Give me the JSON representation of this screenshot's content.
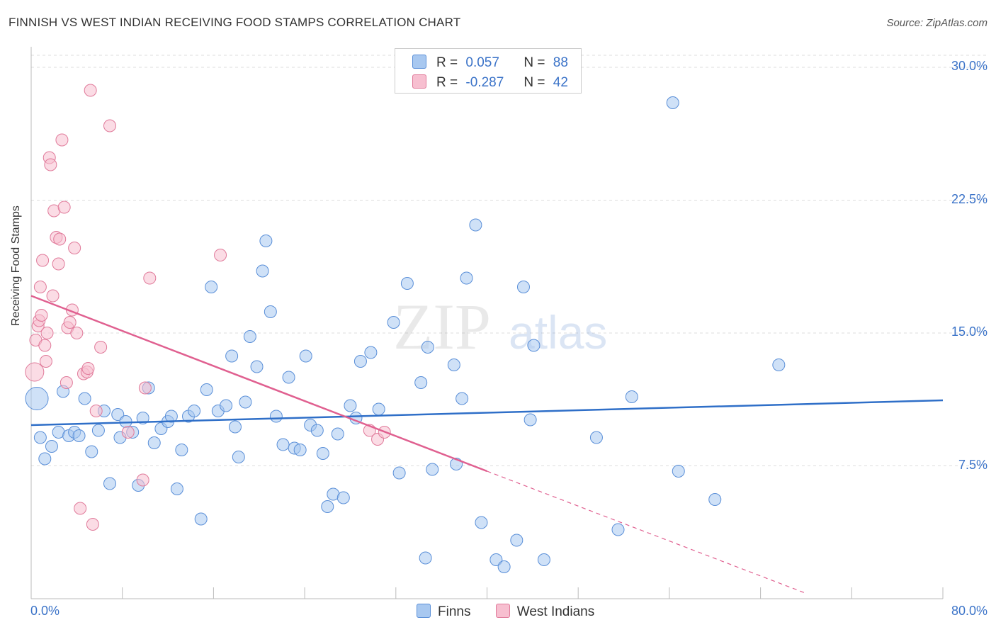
{
  "title": "FINNISH VS WEST INDIAN RECEIVING FOOD STAMPS CORRELATION CHART",
  "source": "Source: ZipAtlas.com",
  "watermark": {
    "zip": "ZIP",
    "atlas": "atlas"
  },
  "legend": {
    "items": [
      {
        "r_label": "R =",
        "r_value": "0.057",
        "n_label": "N =",
        "n_value": "88",
        "color": "#a8c8f0",
        "stroke": "#5a8fd8"
      },
      {
        "r_label": "R =",
        "r_value": "-0.287",
        "n_label": "N =",
        "n_value": "42",
        "color": "#f7bfd0",
        "stroke": "#e07a9a"
      }
    ]
  },
  "bottom_legend": [
    "Finns",
    "West Indians"
  ],
  "colors": {
    "finns_fill": "#a8c8f0",
    "finns_stroke": "#5a8fd8",
    "finns_line": "#2f6fc8",
    "wi_fill": "#f7bfd0",
    "wi_stroke": "#e07a9a",
    "wi_line": "#e06090",
    "tick_text": "#3b73c8",
    "grid": "#dddddd"
  },
  "chart_data": {
    "type": "scatter",
    "title": "FINNISH VS WEST INDIAN RECEIVING FOOD STAMPS CORRELATION CHART",
    "xlabel": "",
    "ylabel": "Receiving Food Stamps",
    "xlim": [
      0,
      80
    ],
    "ylim": [
      0,
      31
    ],
    "x_tick_labels": [
      "0.0%",
      "80.0%"
    ],
    "y_ticks": [
      7.5,
      15.0,
      22.5,
      30.0
    ],
    "y_tick_labels": [
      "7.5%",
      "15.0%",
      "22.5%",
      "30.0%"
    ],
    "series": [
      {
        "name": "Finns",
        "r": 0.057,
        "n": 88,
        "trend": {
          "x": [
            0,
            80
          ],
          "y": [
            9.8,
            11.2
          ]
        },
        "points": [
          [
            0.5,
            11.3
          ],
          [
            0.8,
            9.1
          ],
          [
            1.2,
            7.9
          ],
          [
            1.8,
            8.6
          ],
          [
            2.4,
            9.4
          ],
          [
            2.8,
            11.7
          ],
          [
            3.3,
            9.2
          ],
          [
            3.8,
            9.4
          ],
          [
            4.2,
            9.2
          ],
          [
            4.7,
            11.3
          ],
          [
            5.3,
            8.3
          ],
          [
            5.9,
            9.5
          ],
          [
            6.4,
            10.6
          ],
          [
            6.9,
            6.5
          ],
          [
            7.6,
            10.4
          ],
          [
            7.8,
            9.1
          ],
          [
            8.3,
            10.0
          ],
          [
            8.9,
            9.4
          ],
          [
            9.4,
            6.4
          ],
          [
            9.8,
            10.2
          ],
          [
            10.3,
            11.9
          ],
          [
            10.8,
            8.8
          ],
          [
            11.4,
            9.6
          ],
          [
            12.0,
            10.0
          ],
          [
            12.3,
            10.3
          ],
          [
            12.8,
            6.2
          ],
          [
            13.2,
            8.4
          ],
          [
            13.8,
            10.3
          ],
          [
            14.3,
            10.6
          ],
          [
            14.9,
            4.5
          ],
          [
            15.4,
            11.8
          ],
          [
            15.8,
            17.6
          ],
          [
            16.4,
            10.6
          ],
          [
            17.1,
            10.9
          ],
          [
            17.6,
            13.7
          ],
          [
            17.9,
            9.7
          ],
          [
            18.2,
            8.0
          ],
          [
            18.8,
            11.1
          ],
          [
            19.2,
            14.8
          ],
          [
            19.8,
            13.1
          ],
          [
            20.3,
            18.5
          ],
          [
            20.6,
            20.2
          ],
          [
            21.0,
            16.2
          ],
          [
            21.5,
            10.3
          ],
          [
            22.1,
            8.7
          ],
          [
            22.6,
            12.5
          ],
          [
            23.1,
            8.5
          ],
          [
            23.6,
            8.4
          ],
          [
            24.1,
            13.7
          ],
          [
            24.5,
            9.8
          ],
          [
            25.1,
            9.5
          ],
          [
            25.6,
            8.2
          ],
          [
            26.0,
            5.2
          ],
          [
            26.5,
            5.9
          ],
          [
            26.9,
            9.3
          ],
          [
            27.4,
            5.7
          ],
          [
            28.0,
            10.9
          ],
          [
            28.5,
            10.2
          ],
          [
            28.9,
            13.4
          ],
          [
            29.8,
            13.9
          ],
          [
            30.5,
            10.7
          ],
          [
            31.8,
            15.6
          ],
          [
            32.3,
            7.1
          ],
          [
            33.0,
            17.8
          ],
          [
            34.2,
            12.2
          ],
          [
            34.6,
            2.3
          ],
          [
            34.8,
            14.2
          ],
          [
            35.2,
            7.3
          ],
          [
            37.1,
            13.2
          ],
          [
            37.3,
            7.6
          ],
          [
            37.8,
            11.3
          ],
          [
            38.2,
            18.1
          ],
          [
            39.0,
            21.1
          ],
          [
            39.5,
            4.3
          ],
          [
            40.8,
            2.2
          ],
          [
            41.5,
            1.8
          ],
          [
            42.6,
            3.3
          ],
          [
            43.2,
            17.6
          ],
          [
            43.8,
            10.1
          ],
          [
            44.1,
            14.3
          ],
          [
            45.0,
            2.2
          ],
          [
            49.6,
            9.1
          ],
          [
            51.5,
            3.9
          ],
          [
            52.7,
            11.4
          ],
          [
            56.3,
            28.0
          ],
          [
            56.8,
            7.2
          ],
          [
            60.0,
            5.6
          ],
          [
            65.6,
            13.2
          ]
        ]
      },
      {
        "name": "West Indians",
        "r": -0.287,
        "n": 42,
        "trend": {
          "x": [
            0,
            40
          ],
          "y": [
            17.1,
            7.2
          ]
        },
        "trend_dashed": {
          "x": [
            40,
            68
          ],
          "y": [
            7.2,
            0.3
          ]
        },
        "points": [
          [
            0.3,
            12.8
          ],
          [
            0.4,
            14.6
          ],
          [
            0.6,
            15.4
          ],
          [
            0.7,
            15.7
          ],
          [
            0.8,
            17.6
          ],
          [
            0.9,
            16.0
          ],
          [
            1.0,
            19.1
          ],
          [
            1.2,
            14.3
          ],
          [
            1.3,
            13.4
          ],
          [
            1.4,
            15.0
          ],
          [
            1.6,
            24.9
          ],
          [
            1.7,
            24.5
          ],
          [
            1.9,
            17.1
          ],
          [
            2.0,
            21.9
          ],
          [
            2.2,
            20.4
          ],
          [
            2.4,
            18.9
          ],
          [
            2.5,
            20.3
          ],
          [
            2.7,
            25.9
          ],
          [
            2.9,
            22.1
          ],
          [
            3.1,
            12.2
          ],
          [
            3.2,
            15.3
          ],
          [
            3.4,
            15.6
          ],
          [
            3.6,
            16.3
          ],
          [
            3.8,
            19.8
          ],
          [
            4.0,
            15.0
          ],
          [
            4.3,
            5.1
          ],
          [
            4.6,
            12.7
          ],
          [
            4.9,
            12.8
          ],
          [
            5.0,
            13.0
          ],
          [
            5.2,
            28.7
          ],
          [
            5.4,
            4.2
          ],
          [
            5.7,
            10.6
          ],
          [
            6.1,
            14.2
          ],
          [
            6.9,
            26.7
          ],
          [
            8.5,
            9.4
          ],
          [
            9.8,
            6.7
          ],
          [
            10.0,
            11.9
          ],
          [
            10.4,
            18.1
          ],
          [
            16.6,
            19.4
          ],
          [
            29.7,
            9.5
          ],
          [
            30.4,
            9.0
          ],
          [
            31.0,
            9.4
          ]
        ]
      }
    ]
  }
}
